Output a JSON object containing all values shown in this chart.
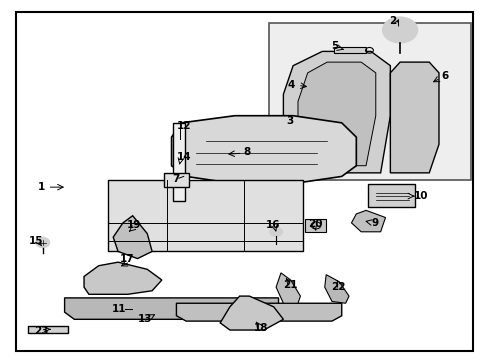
{
  "bg_color": "#ffffff",
  "border_color": "#000000",
  "line_color": "#000000",
  "text_color": "#000000",
  "light_gray": "#d0d0d0",
  "mid_gray": "#b8b8b8",
  "dark_gray": "#909090"
}
